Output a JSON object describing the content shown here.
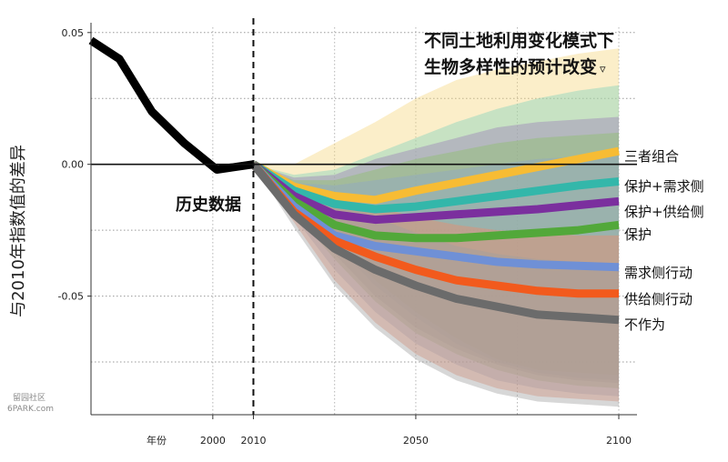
{
  "chart_data": {
    "type": "area",
    "title_line1": "不同土地利用变化模式下",
    "title_line2": "生物多样性的预计改变",
    "title_marker": "▿",
    "ylabel": "与2010年指数值的差异",
    "xlabel": "年份",
    "history_label": "历史数据",
    "xlim": [
      1970,
      2100
    ],
    "ylim": [
      -0.095,
      0.052
    ],
    "x_ticks": [
      2000,
      2010,
      2050,
      2100
    ],
    "y_ticks": [
      0.05,
      0.0,
      -0.05
    ],
    "y_tick_labels": [
      "0.05",
      "0.00",
      "-0.05"
    ],
    "historical": {
      "x": [
        1970,
        1977,
        1985,
        1993,
        2001,
        2010
      ],
      "y": [
        0.047,
        0.04,
        0.02,
        0.008,
        -0.002,
        0.0
      ]
    },
    "grid": "dotted",
    "projection_start": 2010,
    "series": [
      {
        "name": "三者组合",
        "color": "#f7bc34",
        "x": [
          2010,
          2020,
          2030,
          2040,
          2050,
          2060,
          2070,
          2080,
          2090,
          2100
        ],
        "y": [
          0.0,
          -0.0085,
          -0.012,
          -0.0135,
          -0.01,
          -0.007,
          -0.004,
          -0.001,
          0.002,
          0.005
        ],
        "band_color": "#f6d77e",
        "upper": [
          0.0,
          0.0,
          0.008,
          0.016,
          0.025,
          0.032,
          0.036,
          0.039,
          0.042,
          0.044
        ],
        "lower": [
          0.0,
          -0.012,
          -0.028,
          -0.044,
          -0.056,
          -0.066,
          -0.074,
          -0.078,
          -0.079,
          -0.08
        ]
      },
      {
        "name": "保护+需求侧",
        "color": "#33b7aa",
        "x": [
          2010,
          2020,
          2030,
          2040,
          2050,
          2060,
          2070,
          2080,
          2090,
          2100
        ],
        "y": [
          0.0,
          -0.01,
          -0.015,
          -0.017,
          -0.016,
          -0.014,
          -0.012,
          -0.01,
          -0.008,
          -0.0065
        ],
        "band_color": "#7fd1bc",
        "upper": [
          0.0,
          -0.004,
          -0.002,
          0.004,
          0.01,
          0.016,
          0.021,
          0.025,
          0.028,
          0.03
        ],
        "lower": [
          0.0,
          -0.014,
          -0.03,
          -0.046,
          -0.058,
          -0.068,
          -0.075,
          -0.079,
          -0.081,
          -0.082
        ]
      },
      {
        "name": "保护+供给侧",
        "color": "#7b2f9e",
        "x": [
          2010,
          2020,
          2030,
          2040,
          2050,
          2060,
          2070,
          2080,
          2090,
          2100
        ],
        "y": [
          0.0,
          -0.012,
          -0.019,
          -0.021,
          -0.02,
          -0.019,
          -0.018,
          -0.017,
          -0.0155,
          -0.014
        ],
        "band_color": "#9a7fb8",
        "upper": [
          0.0,
          -0.005,
          -0.004,
          0.002,
          0.006,
          0.01,
          0.014,
          0.016,
          0.017,
          0.018
        ],
        "lower": [
          0.0,
          -0.016,
          -0.034,
          -0.05,
          -0.062,
          -0.07,
          -0.076,
          -0.08,
          -0.082,
          -0.083
        ]
      },
      {
        "name": "保护",
        "color": "#52a83a",
        "x": [
          2010,
          2020,
          2030,
          2040,
          2050,
          2060,
          2070,
          2080,
          2090,
          2100
        ],
        "y": [
          0.0,
          -0.014,
          -0.023,
          -0.027,
          -0.028,
          -0.028,
          -0.027,
          -0.026,
          -0.025,
          -0.023
        ],
        "band_color": "#8dbf6a",
        "upper": [
          0.0,
          -0.006,
          -0.006,
          -0.002,
          0.002,
          0.005,
          0.008,
          0.01,
          0.011,
          0.012
        ],
        "lower": [
          0.0,
          -0.018,
          -0.036,
          -0.052,
          -0.064,
          -0.072,
          -0.078,
          -0.082,
          -0.084,
          -0.085
        ]
      },
      {
        "name": "需求侧行动",
        "color": "#6f90d6",
        "x": [
          2010,
          2020,
          2030,
          2040,
          2050,
          2060,
          2070,
          2080,
          2090,
          2100
        ],
        "y": [
          0.0,
          -0.016,
          -0.027,
          -0.031,
          -0.033,
          -0.035,
          -0.037,
          -0.038,
          -0.0385,
          -0.039
        ],
        "band_color": "#8fa6c7",
        "upper": [
          0.0,
          -0.007,
          -0.008,
          -0.006,
          -0.004,
          -0.002,
          0.0,
          0.002,
          0.003,
          0.004
        ],
        "lower": [
          0.0,
          -0.02,
          -0.04,
          -0.056,
          -0.068,
          -0.076,
          -0.082,
          -0.085,
          -0.087,
          -0.088
        ]
      },
      {
        "name": "供给侧行动",
        "color": "#f25a1d",
        "x": [
          2010,
          2020,
          2030,
          2040,
          2050,
          2060,
          2070,
          2080,
          2090,
          2100
        ],
        "y": [
          0.0,
          -0.018,
          -0.029,
          -0.035,
          -0.04,
          -0.044,
          -0.046,
          -0.048,
          -0.049,
          -0.049
        ],
        "band_color": "#f08a6a",
        "upper": [
          0.0,
          -0.008,
          -0.012,
          -0.016,
          -0.02,
          -0.023,
          -0.025,
          -0.026,
          -0.027,
          -0.027
        ],
        "lower": [
          0.0,
          -0.022,
          -0.044,
          -0.06,
          -0.072,
          -0.08,
          -0.085,
          -0.088,
          -0.089,
          -0.09
        ]
      },
      {
        "name": "不作为",
        "color": "#6b6b6b",
        "x": [
          2010,
          2020,
          2030,
          2040,
          2050,
          2060,
          2070,
          2080,
          2090,
          2100
        ],
        "y": [
          0.0,
          -0.019,
          -0.032,
          -0.04,
          -0.046,
          -0.051,
          -0.054,
          -0.057,
          -0.058,
          -0.059
        ],
        "band_color": "#a0a0a0",
        "upper": [
          0.0,
          -0.009,
          -0.014,
          -0.02,
          -0.026,
          -0.031,
          -0.034,
          -0.036,
          -0.037,
          -0.038
        ],
        "lower": [
          0.0,
          -0.024,
          -0.046,
          -0.062,
          -0.074,
          -0.082,
          -0.087,
          -0.09,
          -0.091,
          -0.092
        ]
      }
    ]
  },
  "watermark": {
    "line1": "留园社区",
    "line2": "6PARK.com"
  }
}
